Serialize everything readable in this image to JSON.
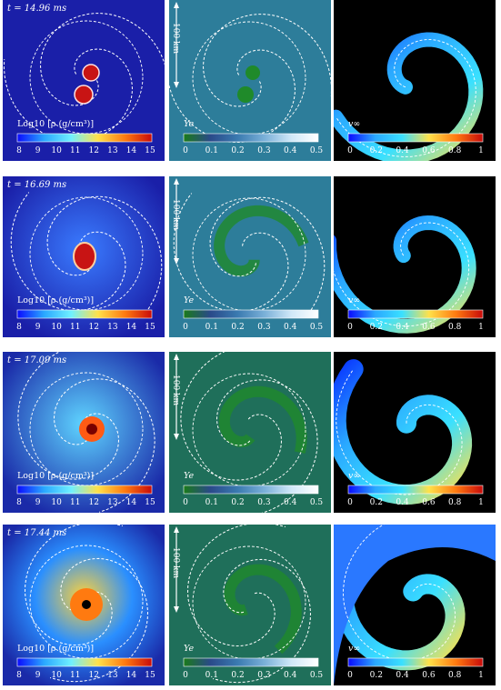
{
  "rows": [
    {
      "time_label": "t = 14.96 ms",
      "scale_label": "100 km",
      "rho": {
        "label": "Log10 [ρ (g/cm³)]",
        "ticks": [
          "8",
          "9",
          "10",
          "11",
          "12",
          "13",
          "14",
          "15"
        ]
      },
      "ye": {
        "label": "Ye",
        "ticks": [
          "0",
          "0.1",
          "0.2",
          "0.3",
          "0.4",
          "0.5"
        ]
      },
      "vinf": {
        "label": "v∞",
        "ticks": [
          "0",
          "0.2",
          "0.4",
          "0.6",
          "0.8",
          "1"
        ]
      }
    },
    {
      "time_label": "t = 16.69 ms",
      "scale_label": "100 km",
      "rho": {
        "label": "Log10 [ρ (g/cm³)]",
        "ticks": [
          "8",
          "9",
          "10",
          "11",
          "12",
          "13",
          "14",
          "15"
        ]
      },
      "ye": {
        "label": "Ye",
        "ticks": [
          "0",
          "0.1",
          "0.2",
          "0.3",
          "0.4",
          "0.5"
        ]
      },
      "vinf": {
        "label": "v∞",
        "ticks": [
          "0",
          "0.2",
          "0.4",
          "0.6",
          "0.8",
          "1"
        ]
      }
    },
    {
      "time_label": "t = 17.09 ms",
      "scale_label": "100 km",
      "rho": {
        "label": "Log10 [ρ (g/cm³)]",
        "ticks": [
          "8",
          "9",
          "10",
          "11",
          "12",
          "13",
          "14",
          "15"
        ]
      },
      "ye": {
        "label": "Ye",
        "ticks": [
          "0",
          "0.1",
          "0.2",
          "0.3",
          "0.4",
          "0.5"
        ]
      },
      "vinf": {
        "label": "v∞",
        "ticks": [
          "0",
          "0.2",
          "0.4",
          "0.6",
          "0.8",
          "1"
        ]
      }
    },
    {
      "time_label": "t = 17.44 ms",
      "scale_label": "100 km",
      "rho": {
        "label": "Log10 [ρ (g/cm³)]",
        "ticks": [
          "8",
          "9",
          "10",
          "11",
          "12",
          "13",
          "14",
          "15"
        ]
      },
      "ye": {
        "label": "Ye",
        "ticks": [
          "0",
          "0.1",
          "0.2",
          "0.3",
          "0.4",
          "0.5"
        ]
      },
      "vinf": {
        "label": "v∞",
        "ticks": [
          "0",
          "0.2",
          "0.4",
          "0.6",
          "0.8",
          "1"
        ]
      }
    }
  ],
  "colors": {
    "density_background": "#1a1fa8",
    "ye_background": "#2d7d9a",
    "vinf_background": "#000000",
    "contour": "#ffffff"
  }
}
